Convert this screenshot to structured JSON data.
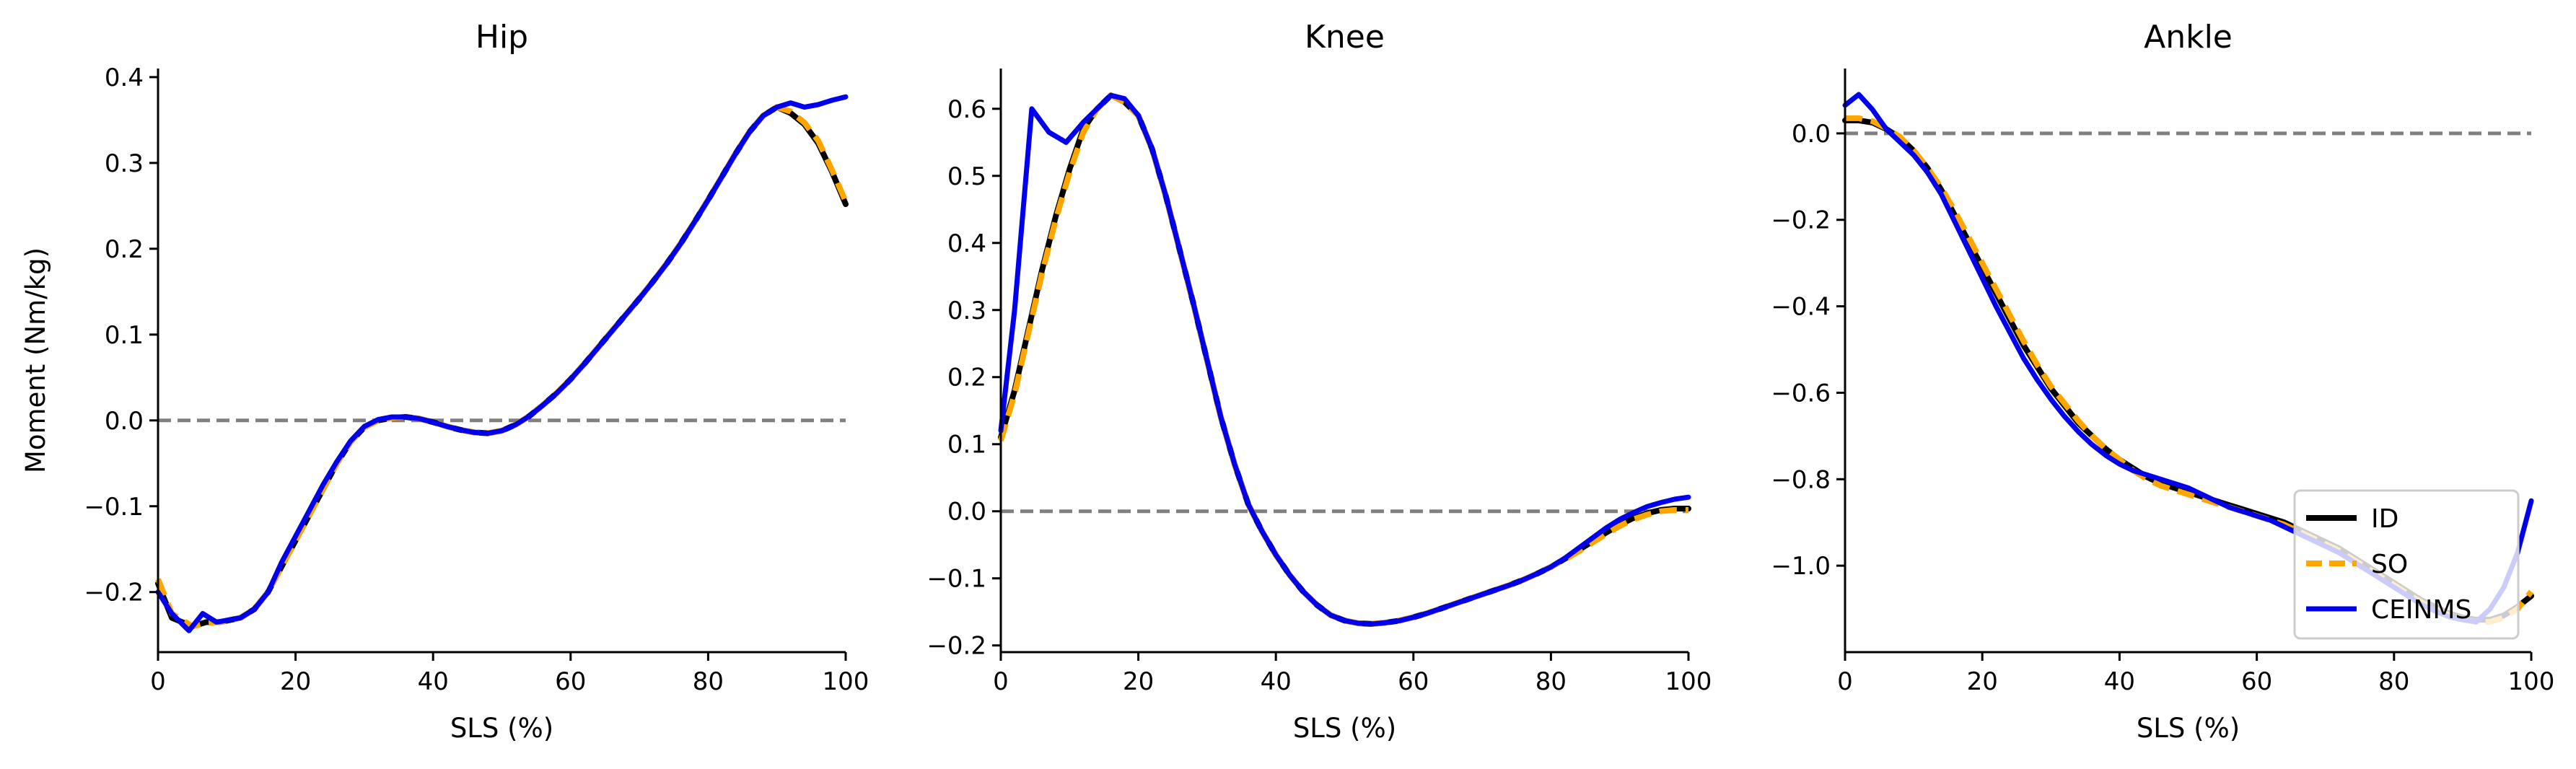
{
  "chart_data": [
    {
      "type": "line",
      "title": "Hip",
      "xlabel": "SLS (%)",
      "ylabel": "Moment (Nm/kg)",
      "xlim": [
        0,
        100
      ],
      "ylim": [
        -0.27,
        0.41
      ],
      "xticks": [
        0,
        20,
        40,
        60,
        80,
        100
      ],
      "yticks": [
        -0.2,
        -0.1,
        0.0,
        0.1,
        0.2,
        0.3,
        0.4
      ],
      "ytick_labels": [
        "−0.2",
        "−0.1",
        "0.0",
        "0.1",
        "0.2",
        "0.3",
        "0.4"
      ],
      "reference_line": 0,
      "grid": false,
      "series": [
        {
          "name": "ID",
          "x": [
            0,
            2,
            5,
            7,
            9,
            12,
            14,
            16,
            18,
            20,
            22,
            24,
            26,
            28,
            30,
            32,
            34,
            36,
            38,
            40,
            42,
            44,
            46,
            48,
            50,
            52,
            54,
            56,
            58,
            60,
            62,
            64,
            66,
            68,
            70,
            72,
            74,
            76,
            78,
            80,
            82,
            84,
            86,
            88,
            90,
            92,
            94,
            96,
            98,
            100
          ],
          "y": [
            -0.19,
            -0.23,
            -0.24,
            -0.235,
            -0.235,
            -0.23,
            -0.22,
            -0.2,
            -0.17,
            -0.14,
            -0.11,
            -0.08,
            -0.05,
            -0.025,
            -0.008,
            0.0,
            0.003,
            0.004,
            0.002,
            -0.002,
            -0.007,
            -0.011,
            -0.014,
            -0.015,
            -0.012,
            -0.005,
            0.005,
            0.018,
            0.032,
            0.048,
            0.066,
            0.085,
            0.104,
            0.123,
            0.142,
            0.162,
            0.183,
            0.206,
            0.231,
            0.257,
            0.284,
            0.311,
            0.336,
            0.355,
            0.365,
            0.358,
            0.345,
            0.323,
            0.29,
            0.252
          ]
        },
        {
          "name": "SO",
          "x": [
            0,
            2,
            5,
            7,
            9,
            12,
            14,
            16,
            18,
            20,
            22,
            24,
            26,
            28,
            30,
            32,
            34,
            36,
            38,
            40,
            42,
            44,
            46,
            48,
            50,
            52,
            54,
            56,
            58,
            60,
            62,
            64,
            66,
            68,
            70,
            72,
            74,
            76,
            78,
            80,
            82,
            84,
            86,
            88,
            90,
            92,
            94,
            96,
            98,
            100
          ],
          "y": [
            -0.185,
            -0.225,
            -0.24,
            -0.236,
            -0.235,
            -0.23,
            -0.22,
            -0.2,
            -0.17,
            -0.14,
            -0.11,
            -0.08,
            -0.05,
            -0.025,
            -0.008,
            0.0,
            0.003,
            0.004,
            0.002,
            -0.002,
            -0.007,
            -0.011,
            -0.014,
            -0.015,
            -0.012,
            -0.005,
            0.005,
            0.018,
            0.032,
            0.048,
            0.066,
            0.085,
            0.104,
            0.123,
            0.142,
            0.162,
            0.183,
            0.206,
            0.231,
            0.257,
            0.284,
            0.311,
            0.336,
            0.355,
            0.365,
            0.36,
            0.347,
            0.326,
            0.292,
            0.255
          ]
        },
        {
          "name": "CEINMS",
          "x": [
            0,
            2,
            4.5,
            6.5,
            8.5,
            12,
            14,
            16,
            18,
            20,
            22,
            24,
            26,
            28,
            30,
            32,
            34,
            36,
            38,
            40,
            42,
            44,
            46,
            48,
            50,
            52,
            54,
            56,
            58,
            60,
            62,
            64,
            66,
            68,
            70,
            72,
            74,
            76,
            78,
            80,
            82,
            84,
            86,
            88,
            90,
            92,
            94,
            96,
            98,
            100
          ],
          "y": [
            -0.2,
            -0.225,
            -0.245,
            -0.225,
            -0.235,
            -0.23,
            -0.22,
            -0.2,
            -0.165,
            -0.135,
            -0.105,
            -0.075,
            -0.048,
            -0.024,
            -0.007,
            0.001,
            0.004,
            0.004,
            0.002,
            -0.002,
            -0.007,
            -0.011,
            -0.014,
            -0.015,
            -0.012,
            -0.005,
            0.005,
            0.018,
            0.032,
            0.048,
            0.066,
            0.085,
            0.104,
            0.123,
            0.142,
            0.162,
            0.183,
            0.206,
            0.231,
            0.257,
            0.284,
            0.311,
            0.336,
            0.355,
            0.365,
            0.37,
            0.365,
            0.368,
            0.373,
            0.377
          ]
        }
      ]
    },
    {
      "type": "line",
      "title": "Knee",
      "xlabel": "SLS (%)",
      "ylabel": "",
      "xlim": [
        0,
        100
      ],
      "ylim": [
        -0.21,
        0.66
      ],
      "xticks": [
        0,
        20,
        40,
        60,
        80,
        100
      ],
      "yticks": [
        -0.2,
        -0.1,
        0.0,
        0.1,
        0.2,
        0.3,
        0.4,
        0.5,
        0.6
      ],
      "ytick_labels": [
        "−0.2",
        "−0.1",
        "0.0",
        "0.1",
        "0.2",
        "0.3",
        "0.4",
        "0.5",
        "0.6"
      ],
      "reference_line": 0,
      "grid": false,
      "series": [
        {
          "name": "ID",
          "x": [
            0,
            2,
            4,
            6,
            8,
            10,
            12,
            14,
            16,
            18,
            20,
            22,
            24,
            26,
            28,
            30,
            32,
            34,
            36,
            38,
            40,
            42,
            44,
            46,
            48,
            50,
            52,
            54,
            56,
            58,
            60,
            62,
            64,
            66,
            68,
            70,
            72,
            74,
            76,
            78,
            80,
            82,
            84,
            86,
            88,
            90,
            92,
            94,
            96,
            98,
            100
          ],
          "y": [
            0.11,
            0.18,
            0.27,
            0.36,
            0.44,
            0.51,
            0.57,
            0.6,
            0.62,
            0.61,
            0.59,
            0.54,
            0.47,
            0.39,
            0.31,
            0.225,
            0.14,
            0.07,
            0.01,
            -0.03,
            -0.065,
            -0.095,
            -0.12,
            -0.14,
            -0.155,
            -0.163,
            -0.167,
            -0.168,
            -0.166,
            -0.163,
            -0.158,
            -0.152,
            -0.145,
            -0.138,
            -0.131,
            -0.124,
            -0.117,
            -0.11,
            -0.102,
            -0.093,
            -0.083,
            -0.071,
            -0.058,
            -0.045,
            -0.032,
            -0.02,
            -0.01,
            -0.003,
            0.002,
            0.004,
            0.004
          ]
        },
        {
          "name": "SO",
          "x": [
            0,
            2,
            4,
            6,
            8,
            10,
            12,
            14,
            16,
            18,
            20,
            22,
            24,
            26,
            28,
            30,
            32,
            34,
            36,
            38,
            40,
            42,
            44,
            46,
            48,
            50,
            52,
            54,
            56,
            58,
            60,
            62,
            64,
            66,
            68,
            70,
            72,
            74,
            76,
            78,
            80,
            82,
            84,
            86,
            88,
            90,
            92,
            94,
            96,
            98,
            100
          ],
          "y": [
            0.105,
            0.175,
            0.265,
            0.355,
            0.435,
            0.505,
            0.565,
            0.6,
            0.62,
            0.61,
            0.59,
            0.54,
            0.47,
            0.39,
            0.31,
            0.225,
            0.14,
            0.07,
            0.01,
            -0.03,
            -0.065,
            -0.095,
            -0.12,
            -0.14,
            -0.155,
            -0.163,
            -0.167,
            -0.168,
            -0.166,
            -0.163,
            -0.158,
            -0.152,
            -0.145,
            -0.138,
            -0.131,
            -0.124,
            -0.117,
            -0.11,
            -0.102,
            -0.093,
            -0.083,
            -0.072,
            -0.06,
            -0.047,
            -0.034,
            -0.022,
            -0.012,
            -0.005,
            0.0,
            0.002,
            0.002
          ]
        },
        {
          "name": "CEINMS",
          "x": [
            0,
            2,
            4.5,
            7,
            9.5,
            12,
            14,
            16,
            18,
            20,
            22,
            24,
            26,
            28,
            30,
            32,
            34,
            36,
            38,
            40,
            42,
            44,
            46,
            48,
            50,
            52,
            54,
            56,
            58,
            60,
            62,
            64,
            66,
            68,
            70,
            72,
            74,
            76,
            78,
            80,
            82,
            84,
            86,
            88,
            90,
            92,
            94,
            96,
            98,
            100
          ],
          "y": [
            0.12,
            0.3,
            0.6,
            0.565,
            0.55,
            0.58,
            0.6,
            0.62,
            0.615,
            0.59,
            0.54,
            0.47,
            0.39,
            0.31,
            0.225,
            0.14,
            0.07,
            0.01,
            -0.03,
            -0.065,
            -0.095,
            -0.12,
            -0.14,
            -0.155,
            -0.163,
            -0.167,
            -0.168,
            -0.166,
            -0.163,
            -0.158,
            -0.152,
            -0.145,
            -0.138,
            -0.131,
            -0.124,
            -0.117,
            -0.11,
            -0.102,
            -0.093,
            -0.083,
            -0.07,
            -0.055,
            -0.04,
            -0.025,
            -0.012,
            -0.002,
            0.007,
            0.013,
            0.018,
            0.021
          ]
        }
      ]
    },
    {
      "type": "line",
      "title": "Ankle",
      "xlabel": "SLS (%)",
      "ylabel": "",
      "xlim": [
        0,
        100
      ],
      "ylim": [
        -1.2,
        0.15
      ],
      "xticks": [
        0,
        20,
        40,
        60,
        80,
        100
      ],
      "yticks": [
        -1.0,
        -0.8,
        -0.6,
        -0.4,
        -0.2,
        0.0
      ],
      "ytick_labels": [
        "−1.0",
        "−0.8",
        "−0.6",
        "−0.4",
        "−0.2",
        "0.0"
      ],
      "reference_line": 0,
      "grid": false,
      "legend": {
        "position": "lower right",
        "entries": [
          "ID",
          "SO",
          "CEINMS"
        ]
      },
      "series": [
        {
          "name": "ID",
          "x": [
            0,
            2,
            4,
            6,
            8,
            10,
            12,
            14,
            16,
            18,
            20,
            22,
            24,
            26,
            28,
            30,
            32,
            34,
            36,
            38,
            40,
            42,
            44,
            46,
            48,
            50,
            52,
            54,
            56,
            58,
            60,
            62,
            64,
            66,
            68,
            70,
            72,
            74,
            76,
            78,
            80,
            82,
            84,
            86,
            88,
            90,
            92,
            94,
            96,
            98,
            100
          ],
          "y": [
            0.03,
            0.03,
            0.025,
            0.01,
            -0.01,
            -0.04,
            -0.08,
            -0.13,
            -0.19,
            -0.25,
            -0.31,
            -0.37,
            -0.43,
            -0.49,
            -0.54,
            -0.59,
            -0.63,
            -0.67,
            -0.7,
            -0.73,
            -0.755,
            -0.775,
            -0.795,
            -0.81,
            -0.82,
            -0.83,
            -0.84,
            -0.85,
            -0.86,
            -0.87,
            -0.88,
            -0.89,
            -0.9,
            -0.915,
            -0.93,
            -0.945,
            -0.96,
            -0.98,
            -1.0,
            -1.02,
            -1.04,
            -1.06,
            -1.08,
            -1.095,
            -1.11,
            -1.12,
            -1.125,
            -1.125,
            -1.115,
            -1.095,
            -1.07
          ]
        },
        {
          "name": "SO",
          "x": [
            0,
            2,
            4,
            6,
            8,
            10,
            12,
            14,
            16,
            18,
            20,
            22,
            24,
            26,
            28,
            30,
            32,
            34,
            36,
            38,
            40,
            42,
            44,
            46,
            48,
            50,
            52,
            54,
            56,
            58,
            60,
            62,
            64,
            66,
            68,
            70,
            72,
            74,
            76,
            78,
            80,
            82,
            84,
            86,
            88,
            90,
            92,
            94,
            96,
            98,
            100
          ],
          "y": [
            0.035,
            0.035,
            0.028,
            0.012,
            -0.008,
            -0.04,
            -0.08,
            -0.125,
            -0.18,
            -0.24,
            -0.3,
            -0.36,
            -0.42,
            -0.48,
            -0.535,
            -0.585,
            -0.625,
            -0.665,
            -0.7,
            -0.73,
            -0.755,
            -0.78,
            -0.8,
            -0.815,
            -0.825,
            -0.835,
            -0.845,
            -0.855,
            -0.865,
            -0.875,
            -0.885,
            -0.895,
            -0.905,
            -0.92,
            -0.935,
            -0.95,
            -0.965,
            -0.985,
            -1.005,
            -1.025,
            -1.045,
            -1.065,
            -1.085,
            -1.1,
            -1.115,
            -1.125,
            -1.13,
            -1.13,
            -1.12,
            -1.1,
            -1.06
          ]
        },
        {
          "name": "CEINMS",
          "x": [
            0,
            2,
            4,
            6,
            8,
            10,
            12,
            14,
            16,
            18,
            20,
            22,
            24,
            26,
            28,
            30,
            32,
            34,
            36,
            38,
            40,
            42,
            44,
            46,
            48,
            50,
            52,
            54,
            56,
            58,
            60,
            62,
            64,
            66,
            68,
            70,
            72,
            74,
            76,
            78,
            80,
            82,
            84,
            86,
            88,
            90,
            92,
            94,
            96,
            98,
            100
          ],
          "y": [
            0.065,
            0.09,
            0.055,
            0.01,
            -0.02,
            -0.05,
            -0.09,
            -0.14,
            -0.205,
            -0.27,
            -0.335,
            -0.4,
            -0.46,
            -0.52,
            -0.57,
            -0.615,
            -0.655,
            -0.69,
            -0.72,
            -0.745,
            -0.765,
            -0.78,
            -0.79,
            -0.8,
            -0.81,
            -0.82,
            -0.835,
            -0.85,
            -0.865,
            -0.875,
            -0.885,
            -0.895,
            -0.91,
            -0.925,
            -0.94,
            -0.955,
            -0.97,
            -0.99,
            -1.01,
            -1.03,
            -1.05,
            -1.07,
            -1.09,
            -1.105,
            -1.118,
            -1.125,
            -1.13,
            -1.1,
            -1.05,
            -0.97,
            -0.85
          ]
        }
      ]
    }
  ],
  "colors": {
    "ID": "#000000",
    "SO": "#ffa500",
    "CEINMS": "#0000ee",
    "reference": "#808080"
  }
}
